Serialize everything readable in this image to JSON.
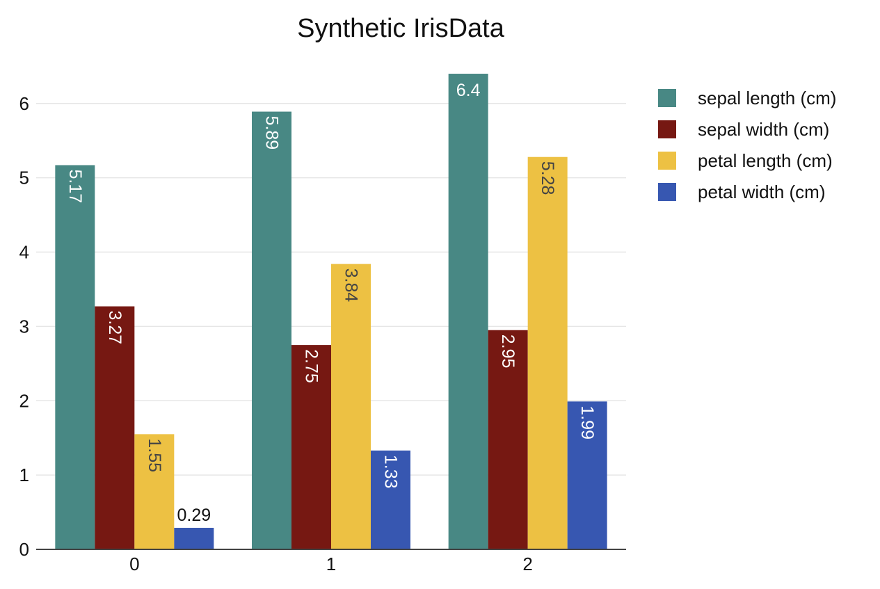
{
  "chart_data": {
    "type": "bar",
    "title": "Synthetic IrisData",
    "xlabel": "",
    "ylabel": "",
    "categories": [
      "0",
      "1",
      "2"
    ],
    "yticks": [
      0,
      1,
      2,
      3,
      4,
      5,
      6
    ],
    "ylim": [
      0,
      6.55
    ],
    "grid": true,
    "legend_position": "top-right",
    "series": [
      {
        "name": "sepal length (cm)",
        "color": "#488884",
        "values": [
          5.17,
          5.89,
          6.4
        ]
      },
      {
        "name": "sepal width (cm)",
        "color": "#761812",
        "values": [
          3.27,
          2.75,
          2.95
        ]
      },
      {
        "name": "petal length (cm)",
        "color": "#edc143",
        "values": [
          1.55,
          3.84,
          5.28
        ]
      },
      {
        "name": "petal width (cm)",
        "color": "#3757b1",
        "values": [
          0.29,
          1.33,
          1.99
        ]
      }
    ]
  }
}
